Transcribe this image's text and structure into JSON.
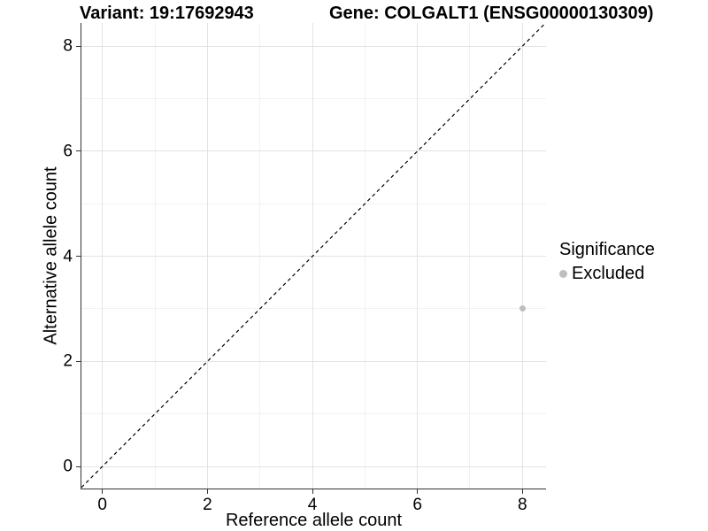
{
  "chart_data": {
    "type": "scatter",
    "title_left": "Variant: 19:17692943",
    "title_right": "Gene: COLGALT1 (ENSG00000130309)",
    "xlabel": "Reference allele count",
    "ylabel": "Alternative allele count",
    "xlim": [
      -0.4,
      8.45
    ],
    "ylim": [
      -0.42,
      8.44
    ],
    "x_ticks": [
      0,
      2,
      4,
      6,
      8
    ],
    "y_ticks": [
      0,
      2,
      4,
      6,
      8
    ],
    "x_minor_ticks": [
      1,
      3,
      5,
      7
    ],
    "y_minor_ticks": [
      1,
      3,
      5,
      7
    ],
    "grid": "major+minor",
    "reference_line": {
      "kind": "identity",
      "slope": 1,
      "intercept": 0,
      "style": "dashed",
      "color": "#000000"
    },
    "series": [
      {
        "name": "Excluded",
        "color": "#bebebe",
        "points": [
          {
            "x": 8,
            "y": 3
          }
        ]
      }
    ],
    "legend": {
      "title": "Significance",
      "position": "right",
      "entries": [
        {
          "label": "Excluded",
          "color": "#bebebe"
        }
      ]
    },
    "colors": {
      "background": "#ffffff",
      "grid_major": "#e3e3e3",
      "grid_minor": "#f1f1f1",
      "axis_line": "#333333",
      "text": "#000000"
    }
  }
}
